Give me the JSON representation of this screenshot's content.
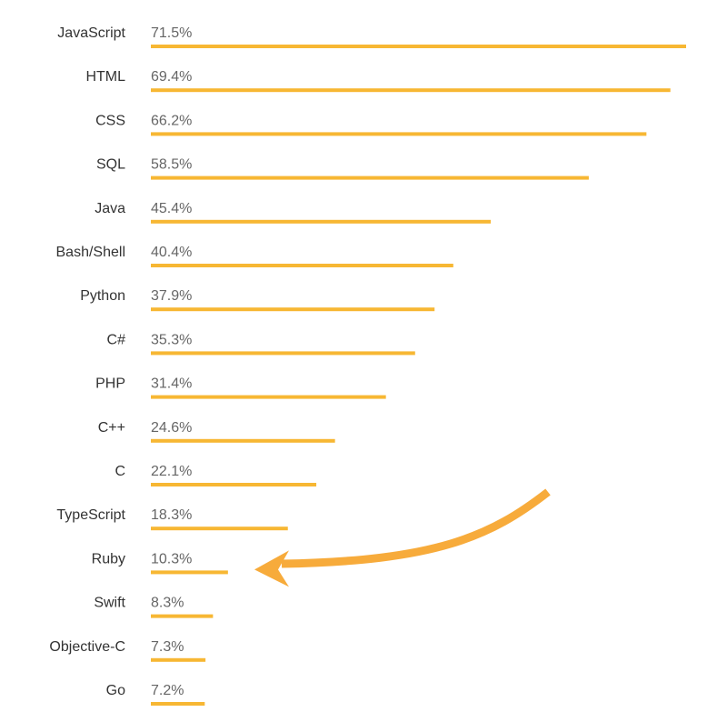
{
  "chart_data": {
    "type": "bar",
    "orientation": "horizontal",
    "title": "",
    "xlabel": "",
    "ylabel": "",
    "categories": [
      "JavaScript",
      "HTML",
      "CSS",
      "SQL",
      "Java",
      "Bash/Shell",
      "Python",
      "C#",
      "PHP",
      "C++",
      "C",
      "TypeScript",
      "Ruby",
      "Swift",
      "Objective-C",
      "Go"
    ],
    "values": [
      71.5,
      69.4,
      66.2,
      58.5,
      45.4,
      40.4,
      37.9,
      35.3,
      31.4,
      24.6,
      22.1,
      18.3,
      10.3,
      8.3,
      7.3,
      7.2
    ],
    "value_labels": [
      "71.5%",
      "69.4%",
      "66.2%",
      "58.5%",
      "45.4%",
      "40.4%",
      "37.9%",
      "35.3%",
      "31.4%",
      "24.6%",
      "22.1%",
      "18.3%",
      "10.3%",
      "8.3%",
      "7.3%",
      "7.2%"
    ],
    "xlim": [
      0,
      71.5
    ],
    "grid": false,
    "legend": false,
    "bar_color": "#f7b733",
    "annotation": {
      "type": "arrow",
      "points_to": "Ruby",
      "color": "#f7ab3b"
    }
  }
}
